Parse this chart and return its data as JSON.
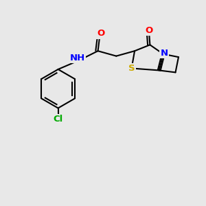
{
  "background_color": "#e8e8e8",
  "atom_colors": {
    "C": "#000000",
    "N": "#0000ff",
    "O": "#ff0000",
    "S": "#ccaa00",
    "Cl": "#00aa00",
    "H": "#4488aa"
  },
  "bond_color": "#000000",
  "figsize": [
    3.0,
    3.0
  ],
  "dpi": 100
}
